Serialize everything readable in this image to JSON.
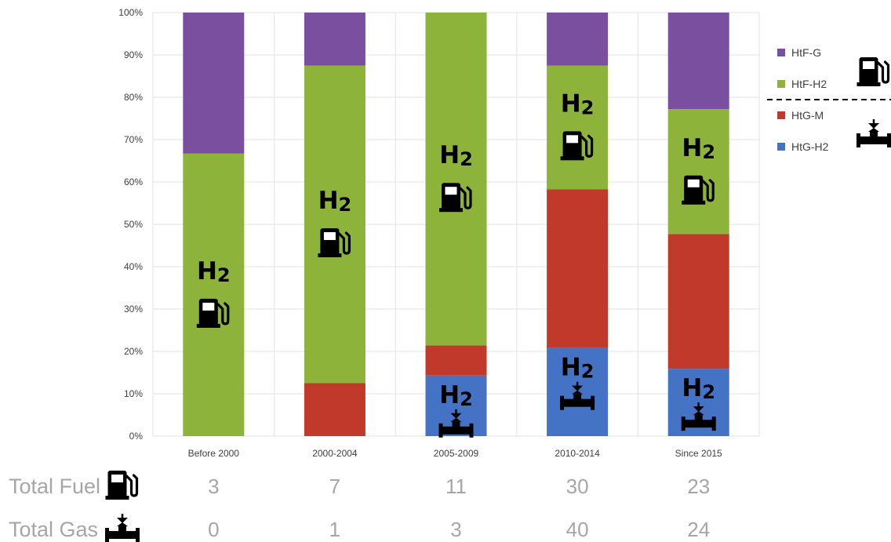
{
  "chart_data": {
    "type": "bar",
    "stacked": true,
    "categories": [
      "Before 2000",
      "2000-2004",
      "2005-2009",
      "2010-2014",
      "Since 2015"
    ],
    "series": [
      {
        "name": "HtG-H2",
        "color": "#4472c4",
        "values": [
          0,
          0,
          14.3,
          20.8,
          15.9
        ]
      },
      {
        "name": "HtG-M",
        "color": "#c0392b",
        "values": [
          0,
          12.5,
          7.1,
          37.5,
          31.8
        ]
      },
      {
        "name": "HtF-H2",
        "color": "#8db33a",
        "values": [
          66.7,
          75.0,
          78.6,
          29.2,
          29.5
        ]
      },
      {
        "name": "HtF-G",
        "color": "#7b4fa0",
        "values": [
          33.3,
          12.5,
          0,
          12.5,
          22.8
        ]
      }
    ],
    "ylim": [
      0,
      100
    ],
    "yticks": [
      "0%",
      "10%",
      "20%",
      "30%",
      "40%",
      "50%",
      "60%",
      "70%",
      "80%",
      "90%",
      "100%"
    ],
    "grid": true,
    "legend_position": "right",
    "legend_order": [
      "HtF-G",
      "HtF-H2",
      "HtG-M",
      "HtG-H2"
    ],
    "legend_group_icons": {
      "fuel": "fuel-pump-icon",
      "gas": "gas-pipeline-icon"
    },
    "bar_annotation_text": "H",
    "bar_annotation_subscript": "2",
    "annotations": [
      {
        "category": "Before 2000",
        "series": "HtF-H2",
        "text": "H",
        "sub": "2",
        "icon": "fuel-pump-icon"
      },
      {
        "category": "2000-2004",
        "series": "HtF-H2",
        "text": "H",
        "sub": "2",
        "icon": "fuel-pump-icon"
      },
      {
        "category": "2005-2009",
        "series": "HtF-H2",
        "text": "H",
        "sub": "2",
        "icon": "fuel-pump-icon"
      },
      {
        "category": "2005-2009",
        "series": "HtG-H2",
        "text": "H",
        "sub": "2",
        "icon": "gas-pipeline-icon"
      },
      {
        "category": "2010-2014",
        "series": "HtF-H2",
        "text": "H",
        "sub": "2",
        "icon": "fuel-pump-icon"
      },
      {
        "category": "2010-2014",
        "series": "HtG-H2",
        "text": "H",
        "sub": "2",
        "icon": "gas-pipeline-icon"
      },
      {
        "category": "Since 2015",
        "series": "HtF-H2",
        "text": "H",
        "sub": "2",
        "icon": "fuel-pump-icon"
      },
      {
        "category": "Since 2015",
        "series": "HtG-H2",
        "text": "H",
        "sub": "2",
        "icon": "gas-pipeline-icon"
      }
    ],
    "totals": [
      {
        "label": "Total Fuel",
        "icon": "fuel-pump-icon",
        "values": [
          "3",
          "7",
          "11",
          "30",
          "23"
        ]
      },
      {
        "label": "Total Gas",
        "icon": "gas-pipeline-icon",
        "values": [
          "0",
          "1",
          "3",
          "40",
          "24"
        ]
      }
    ]
  }
}
